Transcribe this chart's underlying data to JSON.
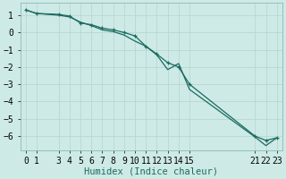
{
  "xlabel": "Humidex (Indice chaleur)",
  "bg_color": "#ceeae6",
  "grid_color": "#b8d8d4",
  "line_color": "#1a6b60",
  "line1_x": [
    0,
    1,
    3,
    4,
    5,
    6,
    7,
    8,
    9,
    10,
    11,
    12,
    13,
    14,
    15,
    21,
    22,
    23
  ],
  "line1_y": [
    1.3,
    1.1,
    1.05,
    0.95,
    0.55,
    0.45,
    0.25,
    0.15,
    0.0,
    -0.2,
    -0.8,
    -1.25,
    -1.75,
    -2.0,
    -3.0,
    -6.0,
    -6.25,
    -6.1
  ],
  "line2_x": [
    0,
    1,
    3,
    4,
    5,
    6,
    7,
    8,
    9,
    10,
    11,
    12,
    13,
    14,
    15,
    21,
    22,
    23
  ],
  "line2_y": [
    1.3,
    1.1,
    1.0,
    0.9,
    0.6,
    0.4,
    0.15,
    0.05,
    -0.15,
    -0.5,
    -0.8,
    -1.3,
    -2.15,
    -1.8,
    -3.3,
    -6.05,
    -6.55,
    -6.1
  ],
  "xlim": [
    -0.5,
    23.5
  ],
  "ylim": [
    -6.8,
    1.7
  ],
  "xticks": [
    0,
    1,
    3,
    4,
    5,
    6,
    7,
    8,
    9,
    10,
    11,
    12,
    13,
    14,
    15,
    21,
    22,
    23
  ],
  "yticks": [
    1,
    0,
    -1,
    -2,
    -3,
    -4,
    -5,
    -6
  ],
  "tick_fontsize": 7,
  "xlabel_fontsize": 7.5
}
